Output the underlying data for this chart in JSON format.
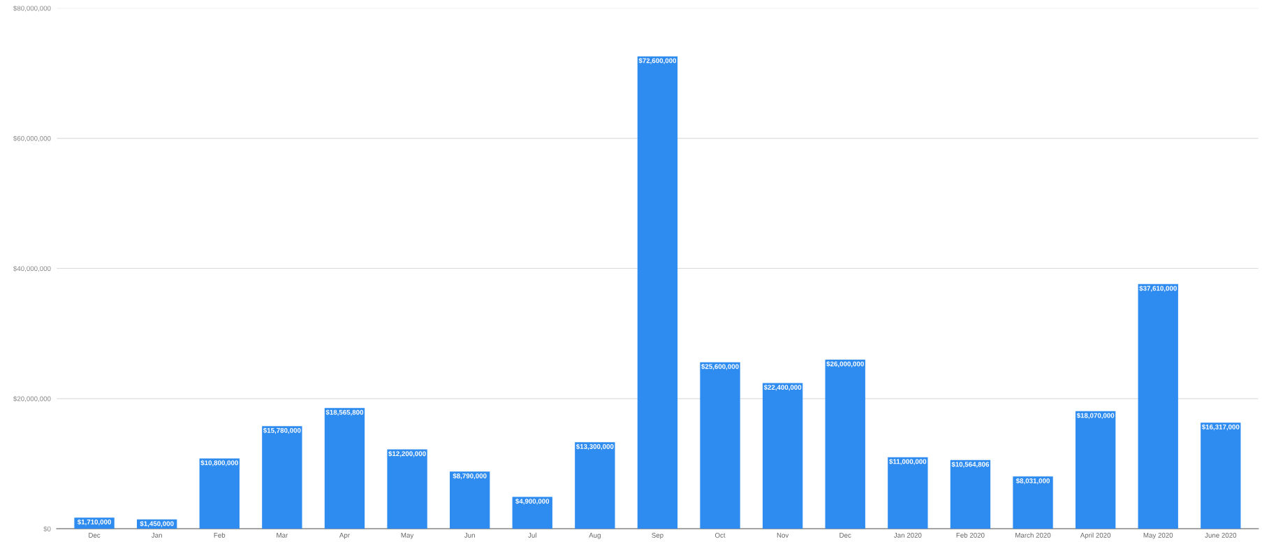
{
  "chart_data": {
    "type": "bar",
    "categories": [
      "Dec",
      "Jan",
      "Feb",
      "Mar",
      "Apr",
      "May",
      "Jun",
      "Jul",
      "Aug",
      "Sep",
      "Oct",
      "Nov",
      "Dec",
      "Jan 2020",
      "Feb 2020",
      "March 2020",
      "April 2020",
      "May 2020",
      "June 2020"
    ],
    "values": [
      1710000,
      1450000,
      10800000,
      15780000,
      18565800,
      12200000,
      8790000,
      4900000,
      13300000,
      72600000,
      25600000,
      22400000,
      26000000,
      11000000,
      10564806,
      8031000,
      18070000,
      37610000,
      16317000
    ],
    "value_labels": [
      "$1,710,000",
      "$1,450,000",
      "$10,800,000",
      "$15,780,000",
      "$18,565,800",
      "$12,200,000",
      "$8,790,000",
      "$4,900,000",
      "$13,300,000",
      "$72,600,000",
      "$25,600,000",
      "$22,400,000",
      "$26,000,000",
      "$11,000,000",
      "$10,564,806",
      "$8,031,000",
      "$18,070,000",
      "$37,610,000",
      "$16,317,000"
    ],
    "color": "#2e8bf0",
    "ylim": [
      0,
      80000000
    ],
    "yticks": [
      {
        "value": 0,
        "label": "$0"
      },
      {
        "value": 20000000,
        "label": "$20,000,000"
      },
      {
        "value": 40000000,
        "label": "$40,000,000"
      },
      {
        "value": 60000000,
        "label": "$60,000,000"
      },
      {
        "value": 80000000,
        "label": "$80,000,000"
      }
    ],
    "grid": "y"
  }
}
